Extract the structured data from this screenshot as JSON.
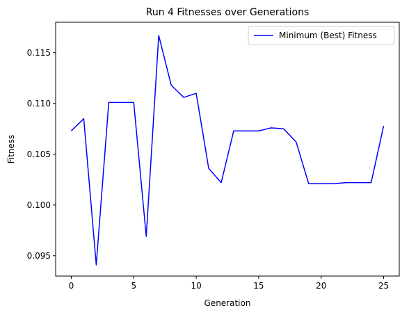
{
  "chart_data": {
    "type": "line",
    "title": "Run 4 Fitnesses over Generations",
    "xlabel": "Generation",
    "ylabel": "Fitness",
    "xlim": [
      -1.25,
      26.25
    ],
    "ylim": [
      0.093,
      0.118
    ],
    "xticks": [
      0,
      5,
      10,
      15,
      20,
      25
    ],
    "xtick_labels": [
      "0",
      "5",
      "10",
      "15",
      "20",
      "25"
    ],
    "yticks": [
      0.095,
      0.1,
      0.105,
      0.11,
      0.115
    ],
    "ytick_labels": [
      "0.095",
      "0.100",
      "0.105",
      "0.110",
      "0.115"
    ],
    "grid": false,
    "legend_position": "top-right",
    "series": [
      {
        "name": "Minimum (Best) Fitness",
        "color": "#0000ff",
        "x": [
          0,
          1,
          2,
          3,
          4,
          5,
          6,
          7,
          8,
          9,
          10,
          11,
          12,
          13,
          14,
          15,
          16,
          17,
          18,
          19,
          20,
          21,
          22,
          23,
          24,
          25
        ],
        "y": [
          0.1073,
          0.1085,
          0.0941,
          0.1101,
          0.1101,
          0.1101,
          0.0969,
          0.1167,
          0.1118,
          0.1106,
          0.111,
          0.1036,
          0.1022,
          0.1073,
          0.1073,
          0.1073,
          0.1076,
          0.1075,
          0.1062,
          0.1021,
          0.1021,
          0.1021,
          0.1022,
          0.1022,
          0.1022,
          0.1078
        ]
      }
    ]
  }
}
